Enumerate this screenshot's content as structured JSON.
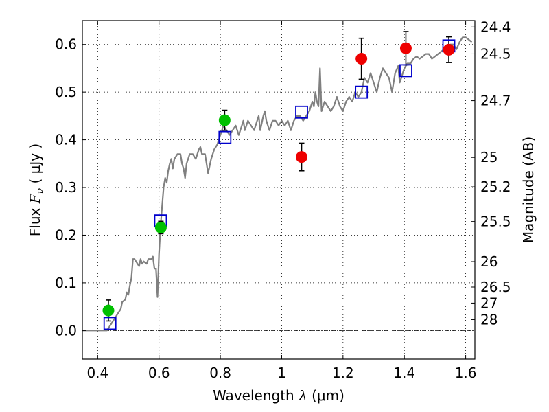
{
  "chart_data": {
    "type": "scatter",
    "xlabel": {
      "prefix": "Wavelength  ",
      "symbol": "λ",
      "unit": " (μm)"
    },
    "ylabel": {
      "prefix": "Flux  ",
      "symbol": "F",
      "subscript": "ν",
      "unit": "  ( μJy )"
    },
    "y2label": "Magnitude (AB)",
    "xlim": [
      0.35,
      1.63
    ],
    "ylim": [
      -0.06,
      0.65
    ],
    "grid": true,
    "x_ticks": [
      {
        "v": 0.4,
        "label": "0.4"
      },
      {
        "v": 0.6,
        "label": "0.6"
      },
      {
        "v": 0.8,
        "label": "0.8"
      },
      {
        "v": 1.0,
        "label": "1"
      },
      {
        "v": 1.2,
        "label": "1.2"
      },
      {
        "v": 1.4,
        "label": "1.4"
      },
      {
        "v": 1.6,
        "label": "1.6"
      }
    ],
    "y_ticks": [
      {
        "v": 0.0,
        "label": "0.0"
      },
      {
        "v": 0.1,
        "label": "0.1"
      },
      {
        "v": 0.2,
        "label": "0.2"
      },
      {
        "v": 0.3,
        "label": "0.3"
      },
      {
        "v": 0.4,
        "label": "0.4"
      },
      {
        "v": 0.5,
        "label": "0.5"
      },
      {
        "v": 0.6,
        "label": "0.6"
      }
    ],
    "y2_ticks": [
      {
        "flux": 0.6366,
        "label": "24.4"
      },
      {
        "flux": 0.5802,
        "label": "24.5"
      },
      {
        "flux": 0.4821,
        "label": "24.7"
      },
      {
        "flux": 0.3631,
        "label": "25"
      },
      {
        "flux": 0.3014,
        "label": "25.2"
      },
      {
        "flux": 0.2285,
        "label": "25.5"
      },
      {
        "flux": 0.1445,
        "label": "26"
      },
      {
        "flux": 0.0912,
        "label": "26.5"
      },
      {
        "flux": 0.0575,
        "label": "27"
      },
      {
        "flux": 0.0229,
        "label": "28"
      }
    ],
    "zero_line": 0.0,
    "series": [
      {
        "kind": "line",
        "color": "#808080",
        "points": [
          [
            0.35,
            0.0
          ],
          [
            0.43,
            0.0
          ],
          [
            0.445,
            0.015
          ],
          [
            0.46,
            0.03
          ],
          [
            0.475,
            0.045
          ],
          [
            0.48,
            0.06
          ],
          [
            0.49,
            0.065
          ],
          [
            0.495,
            0.08
          ],
          [
            0.5,
            0.075
          ],
          [
            0.505,
            0.095
          ],
          [
            0.51,
            0.11
          ],
          [
            0.515,
            0.15
          ],
          [
            0.52,
            0.15
          ],
          [
            0.53,
            0.14
          ],
          [
            0.535,
            0.135
          ],
          [
            0.54,
            0.15
          ],
          [
            0.545,
            0.14
          ],
          [
            0.55,
            0.145
          ],
          [
            0.56,
            0.14
          ],
          [
            0.565,
            0.15
          ],
          [
            0.575,
            0.15
          ],
          [
            0.58,
            0.155
          ],
          [
            0.585,
            0.13
          ],
          [
            0.59,
            0.13
          ],
          [
            0.595,
            0.07
          ],
          [
            0.6,
            0.16
          ],
          [
            0.605,
            0.22
          ],
          [
            0.61,
            0.26
          ],
          [
            0.615,
            0.3
          ],
          [
            0.62,
            0.32
          ],
          [
            0.625,
            0.31
          ],
          [
            0.63,
            0.335
          ],
          [
            0.635,
            0.35
          ],
          [
            0.64,
            0.36
          ],
          [
            0.645,
            0.34
          ],
          [
            0.65,
            0.36
          ],
          [
            0.66,
            0.37
          ],
          [
            0.67,
            0.37
          ],
          [
            0.675,
            0.35
          ],
          [
            0.68,
            0.34
          ],
          [
            0.685,
            0.32
          ],
          [
            0.69,
            0.35
          ],
          [
            0.7,
            0.37
          ],
          [
            0.71,
            0.37
          ],
          [
            0.72,
            0.36
          ],
          [
            0.73,
            0.38
          ],
          [
            0.735,
            0.385
          ],
          [
            0.74,
            0.37
          ],
          [
            0.75,
            0.37
          ],
          [
            0.76,
            0.33
          ],
          [
            0.77,
            0.36
          ],
          [
            0.78,
            0.38
          ],
          [
            0.79,
            0.39
          ],
          [
            0.8,
            0.41
          ],
          [
            0.81,
            0.43
          ],
          [
            0.82,
            0.42
          ],
          [
            0.83,
            0.41
          ],
          [
            0.84,
            0.42
          ],
          [
            0.85,
            0.43
          ],
          [
            0.86,
            0.41
          ],
          [
            0.87,
            0.43
          ],
          [
            0.875,
            0.44
          ],
          [
            0.88,
            0.42
          ],
          [
            0.89,
            0.44
          ],
          [
            0.9,
            0.43
          ],
          [
            0.91,
            0.42
          ],
          [
            0.92,
            0.44
          ],
          [
            0.925,
            0.45
          ],
          [
            0.93,
            0.42
          ],
          [
            0.94,
            0.45
          ],
          [
            0.945,
            0.46
          ],
          [
            0.95,
            0.44
          ],
          [
            0.96,
            0.42
          ],
          [
            0.97,
            0.44
          ],
          [
            0.98,
            0.44
          ],
          [
            0.99,
            0.43
          ],
          [
            1.0,
            0.44
          ],
          [
            1.01,
            0.43
          ],
          [
            1.02,
            0.44
          ],
          [
            1.03,
            0.42
          ],
          [
            1.04,
            0.44
          ],
          [
            1.05,
            0.45
          ],
          [
            1.06,
            0.45
          ],
          [
            1.07,
            0.44
          ],
          [
            1.08,
            0.45
          ],
          [
            1.09,
            0.46
          ],
          [
            1.1,
            0.48
          ],
          [
            1.105,
            0.47
          ],
          [
            1.11,
            0.5
          ],
          [
            1.115,
            0.48
          ],
          [
            1.12,
            0.47
          ],
          [
            1.125,
            0.55
          ],
          [
            1.13,
            0.46
          ],
          [
            1.14,
            0.48
          ],
          [
            1.15,
            0.47
          ],
          [
            1.16,
            0.46
          ],
          [
            1.17,
            0.47
          ],
          [
            1.18,
            0.49
          ],
          [
            1.19,
            0.47
          ],
          [
            1.2,
            0.46
          ],
          [
            1.21,
            0.48
          ],
          [
            1.22,
            0.49
          ],
          [
            1.23,
            0.48
          ],
          [
            1.24,
            0.5
          ],
          [
            1.25,
            0.49
          ],
          [
            1.26,
            0.5
          ],
          [
            1.27,
            0.53
          ],
          [
            1.28,
            0.52
          ],
          [
            1.29,
            0.54
          ],
          [
            1.3,
            0.52
          ],
          [
            1.31,
            0.5
          ],
          [
            1.32,
            0.53
          ],
          [
            1.33,
            0.55
          ],
          [
            1.34,
            0.54
          ],
          [
            1.35,
            0.53
          ],
          [
            1.36,
            0.5
          ],
          [
            1.37,
            0.54
          ],
          [
            1.38,
            0.555
          ],
          [
            1.385,
            0.52
          ],
          [
            1.39,
            0.53
          ],
          [
            1.4,
            0.55
          ],
          [
            1.41,
            0.56
          ],
          [
            1.42,
            0.56
          ],
          [
            1.43,
            0.57
          ],
          [
            1.44,
            0.575
          ],
          [
            1.45,
            0.57
          ],
          [
            1.46,
            0.575
          ],
          [
            1.47,
            0.58
          ],
          [
            1.48,
            0.58
          ],
          [
            1.49,
            0.57
          ],
          [
            1.5,
            0.575
          ],
          [
            1.51,
            0.58
          ],
          [
            1.52,
            0.585
          ],
          [
            1.53,
            0.59
          ],
          [
            1.54,
            0.595
          ],
          [
            1.55,
            0.6
          ],
          [
            1.56,
            0.6
          ],
          [
            1.57,
            0.59
          ],
          [
            1.58,
            0.605
          ],
          [
            1.59,
            0.615
          ],
          [
            1.6,
            0.615
          ],
          [
            1.61,
            0.61
          ],
          [
            1.62,
            0.605
          ]
        ]
      },
      {
        "kind": "open-square",
        "color": "#0000cc",
        "points": [
          [
            0.44,
            0.015
          ],
          [
            0.605,
            0.23
          ],
          [
            0.815,
            0.405
          ],
          [
            1.065,
            0.458
          ],
          [
            1.26,
            0.5
          ],
          [
            1.405,
            0.545
          ],
          [
            1.545,
            0.597
          ]
        ]
      },
      {
        "kind": "filled-circle",
        "color": "#00c000",
        "points": [
          {
            "x": 0.435,
            "y": 0.042,
            "err": 0.022
          },
          {
            "x": 0.606,
            "y": 0.216,
            "err": 0.013
          },
          {
            "x": 0.814,
            "y": 0.441,
            "err": 0.021
          }
        ]
      },
      {
        "kind": "filled-circle",
        "color": "#ee0000",
        "points": [
          {
            "x": 1.065,
            "y": 0.364,
            "err": 0.029
          },
          {
            "x": 1.26,
            "y": 0.57,
            "err": 0.043
          },
          {
            "x": 1.405,
            "y": 0.592,
            "err": 0.035
          },
          {
            "x": 1.545,
            "y": 0.589,
            "err": 0.027
          }
        ]
      }
    ]
  }
}
